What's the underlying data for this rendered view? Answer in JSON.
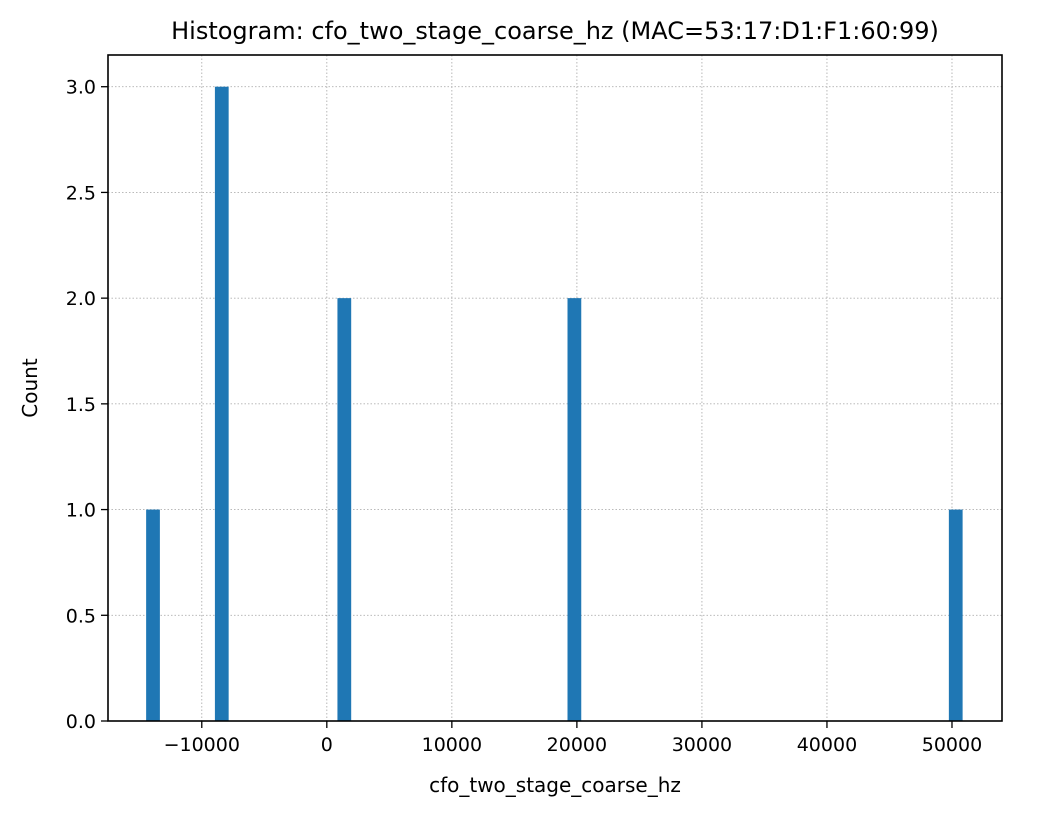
{
  "chart_data": {
    "type": "bar",
    "title": "Histogram: cfo_two_stage_coarse_hz (MAC=53:17:D1:F1:60:99)",
    "xlabel": "cfo_two_stage_coarse_hz",
    "ylabel": "Count",
    "xlim": [
      -17500,
      54000
    ],
    "ylim": [
      0,
      3.15
    ],
    "bin_width": 1100,
    "bars": [
      {
        "x": -13900,
        "count": 1
      },
      {
        "x": -8400,
        "count": 3
      },
      {
        "x": 1400,
        "count": 2
      },
      {
        "x": 19800,
        "count": 2
      },
      {
        "x": 50300,
        "count": 1
      }
    ],
    "x_ticks": [
      {
        "value": -10000,
        "label": "−10000"
      },
      {
        "value": 0,
        "label": "0"
      },
      {
        "value": 10000,
        "label": "10000"
      },
      {
        "value": 20000,
        "label": "20000"
      },
      {
        "value": 30000,
        "label": "30000"
      },
      {
        "value": 40000,
        "label": "40000"
      },
      {
        "value": 50000,
        "label": "50000"
      }
    ],
    "y_ticks": [
      {
        "value": 0,
        "label": "0.0"
      },
      {
        "value": 0.5,
        "label": "0.5"
      },
      {
        "value": 1,
        "label": "1.0"
      },
      {
        "value": 1.5,
        "label": "1.5"
      },
      {
        "value": 2,
        "label": "2.0"
      },
      {
        "value": 2.5,
        "label": "2.5"
      },
      {
        "value": 3,
        "label": "3.0"
      }
    ],
    "grid": true,
    "bar_color": "#1f77b4",
    "grid_color": "#b0b0b0"
  }
}
